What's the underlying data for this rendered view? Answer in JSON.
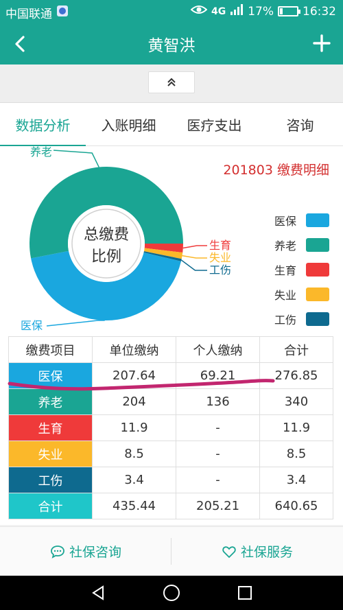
{
  "status_bar": {
    "carrier": "中国联通",
    "network_1": "4G",
    "network_2": "4G",
    "battery": "17%",
    "battery_level": 0.17,
    "time": "16:32"
  },
  "header": {
    "title": "黄智洪"
  },
  "tabs": [
    {
      "label": "数据分析",
      "active": true
    },
    {
      "label": "入账明细",
      "active": false
    },
    {
      "label": "医疗支出",
      "active": false
    },
    {
      "label": "咨询",
      "active": false
    }
  ],
  "chart_data": {
    "type": "pie",
    "title": "201803 缴费明细",
    "center_label_line1": "总缴费",
    "center_label_line2": "比例",
    "categories": [
      "医保",
      "养老",
      "生育",
      "失业",
      "工伤"
    ],
    "values": [
      276.85,
      340,
      11.9,
      8.5,
      3.4
    ],
    "colors": [
      "#1aa7df",
      "#1aa593",
      "#ef3a3a",
      "#fbb82a",
      "#0e6a8f"
    ],
    "legend_position": "right"
  },
  "table": {
    "headers": [
      "缴费项目",
      "单位缴纳",
      "个人缴纳",
      "合计"
    ],
    "rows": [
      {
        "item": "医保",
        "unit": "207.64",
        "personal": "69.21",
        "total": "276.85",
        "color": "#1aa7df"
      },
      {
        "item": "养老",
        "unit": "204",
        "personal": "136",
        "total": "340",
        "color": "#1aa593"
      },
      {
        "item": "生育",
        "unit": "11.9",
        "personal": "-",
        "total": "11.9",
        "color": "#ef3a3a"
      },
      {
        "item": "失业",
        "unit": "8.5",
        "personal": "-",
        "total": "8.5",
        "color": "#fbb82a"
      },
      {
        "item": "工伤",
        "unit": "3.4",
        "personal": "-",
        "total": "3.4",
        "color": "#0e6a8f"
      },
      {
        "item": "合计",
        "unit": "435.44",
        "personal": "205.21",
        "total": "640.65",
        "color": "#1fc6c9"
      }
    ]
  },
  "bottom_actions": [
    {
      "label": "社保咨询",
      "icon": "chat-bubble-icon"
    },
    {
      "label": "社保服务",
      "icon": "heart-icon"
    }
  ],
  "colors": {
    "accent": "#1aa593",
    "title_red": "#d32f2f",
    "annotation": "#c2266f"
  }
}
